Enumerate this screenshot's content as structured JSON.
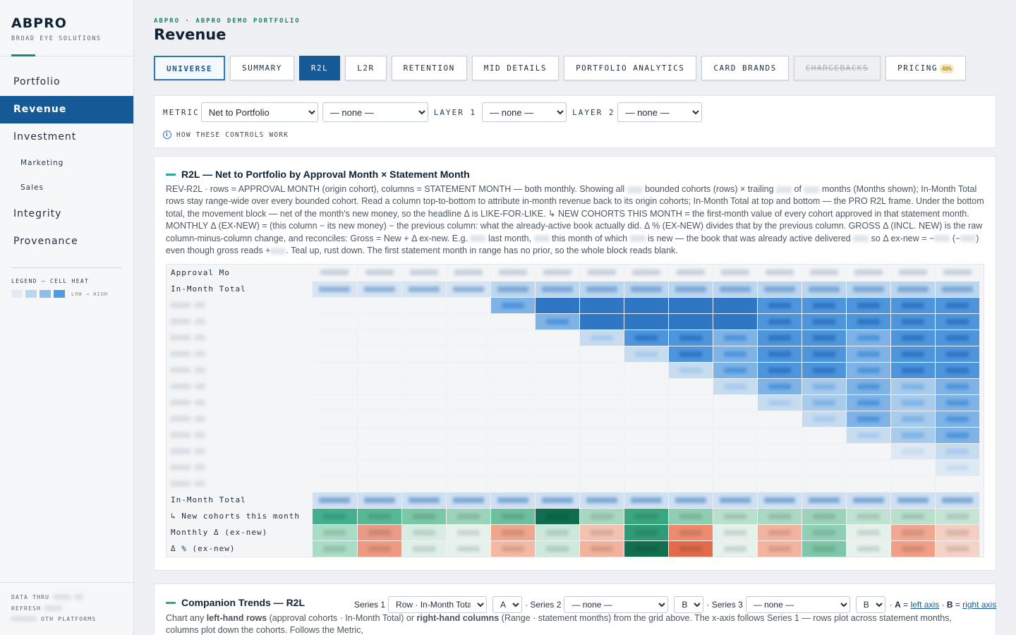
{
  "brand": {
    "title": "ABPRO",
    "subtitle": "BROAD EYE SOLUTIONS"
  },
  "nav": [
    {
      "label": "Portfolio",
      "kind": "item",
      "active": false
    },
    {
      "label": "Revenue",
      "kind": "item",
      "active": true
    },
    {
      "label": "Investment",
      "kind": "item",
      "active": false
    },
    {
      "label": "Marketing",
      "kind": "sub",
      "active": false
    },
    {
      "label": "Sales",
      "kind": "sub",
      "active": false
    },
    {
      "label": "Integrity",
      "kind": "item",
      "active": false
    },
    {
      "label": "Provenance",
      "kind": "item",
      "active": false
    }
  ],
  "legend": {
    "title": "LEGEND — CELL HEAT",
    "range": "LOW → HIGH",
    "colors": [
      "#e3eaf2",
      "#bcd6ef",
      "#8fbdea",
      "#4e9be0"
    ]
  },
  "footer": {
    "data_thru": "DATA THRU",
    "refresh": "REFRESH",
    "platforms": "OTH PLATFORMS"
  },
  "breadcrumb": "ABPRO · ABPRO DEMO PORTFOLIO",
  "page_title": "Revenue",
  "tabs": [
    {
      "label": "UNIVERSE",
      "state": "universe"
    },
    {
      "label": "SUMMARY",
      "state": "normal"
    },
    {
      "label": "R2L",
      "state": "active"
    },
    {
      "label": "L2R",
      "state": "normal"
    },
    {
      "label": "RETENTION",
      "state": "normal"
    },
    {
      "label": "MID DETAILS",
      "state": "normal"
    },
    {
      "label": "PORTFOLIO ANALYTICS",
      "state": "normal"
    },
    {
      "label": "CARD BRANDS",
      "state": "normal"
    },
    {
      "label": "CHARGEBACKS",
      "state": "disabled"
    },
    {
      "label": "PRICING",
      "state": "normal",
      "badge": "40%"
    }
  ],
  "controls": {
    "metric_label": "METRIC",
    "metric_value": "Net to Portfolio",
    "metric2_value": "— none —",
    "layer1_label": "LAYER 1",
    "layer1_value": "— none —",
    "layer2_label": "LAYER 2",
    "layer2_value": "— none —",
    "howto": "HOW THESE CONTROLS WORK"
  },
  "r2l": {
    "title": "R2L — Net to Portfolio by Approval Month × Statement Month",
    "desc_1": "REV-R2L · rows = APPROVAL MONTH (origin cohort), columns = STATEMENT MONTH — both monthly. Showing all",
    "desc_2": "bounded cohorts (rows) × trailing",
    "desc_3": "of",
    "desc_4": "months (Months shown); In-Month Total rows stay range-wide over every bounded cohort. Read a column top-to-bottom to attribute in-month revenue back to its origin cohorts; In-Month Total at top and bottom — the PRO R2L frame. Under the bottom total, the movement block — net of the month's new money, so the headline Δ is LIKE-FOR-LIKE. ↳ NEW COHORTS THIS MONTH = the first-month value of every cohort approved in that statement month. MONTHLY Δ (EX-NEW) = (this column − its new money) − the previous column: what the already-active book actually did. Δ % (EX-NEW) divides that by the previous column. GROSS Δ (INCL. NEW) is the raw column-minus-column change, and reconciles: Gross = New + Δ ex-new. E.g.",
    "desc_5": "last month,",
    "desc_6": "this month of which",
    "desc_7": "is new — the book that was already active delivered",
    "desc_8": "so Δ ex-new = −",
    "desc_9": "(−",
    "desc_10": ") even though gross reads +",
    "desc_11": ". Teal up, rust down. The first statement month in range has no prior, so the whole block reads blank.",
    "header_label": "Approval Mo",
    "in_month_total": "In-Month Total",
    "new_cohorts": "↳ New cohorts this month",
    "monthly_delta": "Monthly Δ (ex-new)",
    "pct_delta": "Δ % (ex-new)",
    "gross_delta": "Gross Δ (incl. new)"
  },
  "companion": {
    "title": "Companion Trends — R2L",
    "series1_label": "Series 1",
    "series1_value": "Row · In-Month Total",
    "axis1": "A",
    "series2_label": "· Series 2",
    "series2_value": "— none —",
    "axis2": "B",
    "series3_label": "· Series 3",
    "series3_value": "— none —",
    "axis3": "B",
    "legend_a_key": "A",
    "legend_a": "left axis",
    "legend_b_key": "B",
    "legend_b": "right axis",
    "desc_a": "Chart any",
    "desc_b": "left-hand rows",
    "desc_c": "(approval cohorts · In-Month Total) or",
    "desc_d": "right-hand columns",
    "desc_e": "(Range · statement months) from the grid above. The x-axis follows Series 1 — rows plot across statement months, columns plot down the cohorts. Follows the Metric,"
  }
}
